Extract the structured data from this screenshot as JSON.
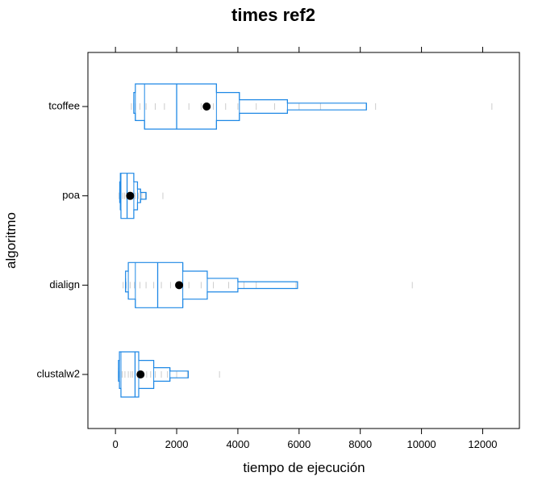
{
  "chart_data": {
    "type": "bwplot",
    "title": "times ref2",
    "xlabel": "tiempo de ejecución",
    "ylabel": "algoritmo",
    "xlim": [
      -900,
      13200
    ],
    "x_ticks": [
      0,
      2000,
      4000,
      6000,
      8000,
      10000,
      12000
    ],
    "x_tick_labels": [
      "0",
      "2000",
      "4000",
      "6000",
      "8000",
      "10000",
      "12000"
    ],
    "categories": [
      "clustalw2",
      "dialign",
      "poa",
      "tcoffee"
    ],
    "colors": {
      "box": "#1e88e5",
      "median": "#1e88e5",
      "mean": "#000000",
      "points": "#cccccc"
    },
    "series": [
      {
        "category": "clustalw2",
        "mean": 820,
        "median": 640,
        "steps": [
          {
            "x1": 180,
            "x2": 760,
            "w": 1.0
          },
          {
            "x1": 130,
            "x2": 1250,
            "w": 0.62
          },
          {
            "x1": 100,
            "x2": 1780,
            "w": 0.3
          },
          {
            "x1": 100,
            "x2": 2380,
            "w": 0.15
          }
        ],
        "points": [
          130,
          220,
          310,
          420,
          500,
          560,
          640,
          720,
          800,
          900,
          1020,
          1150,
          1300,
          1500,
          1700,
          2000,
          2350,
          3400
        ]
      },
      {
        "category": "dialign",
        "mean": 2080,
        "median": 1380,
        "steps": [
          {
            "x1": 650,
            "x2": 2200,
            "w": 1.0
          },
          {
            "x1": 420,
            "x2": 3000,
            "w": 0.62
          },
          {
            "x1": 330,
            "x2": 4000,
            "w": 0.3
          },
          {
            "x1": 330,
            "x2": 5950,
            "w": 0.15
          }
        ],
        "points": [
          250,
          350,
          480,
          620,
          800,
          1000,
          1250,
          1500,
          1800,
          2100,
          2400,
          2800,
          3200,
          3700,
          4200,
          4600,
          5900,
          9700
        ]
      },
      {
        "category": "poa",
        "mean": 480,
        "median": 380,
        "steps": [
          {
            "x1": 180,
            "x2": 600,
            "w": 1.0
          },
          {
            "x1": 160,
            "x2": 720,
            "w": 0.62
          },
          {
            "x1": 140,
            "x2": 820,
            "w": 0.3
          },
          {
            "x1": 140,
            "x2": 1000,
            "w": 0.15
          }
        ],
        "points": [
          120,
          180,
          240,
          300,
          360,
          420,
          480,
          560,
          640,
          750,
          860,
          980,
          1550
        ]
      },
      {
        "category": "tcoffee",
        "mean": 2980,
        "median": 2000,
        "steps": [
          {
            "x1": 950,
            "x2": 3300,
            "w": 1.0
          },
          {
            "x1": 650,
            "x2": 4050,
            "w": 0.62
          },
          {
            "x1": 600,
            "x2": 5620,
            "w": 0.3
          },
          {
            "x1": 600,
            "x2": 8200,
            "w": 0.15
          }
        ],
        "points": [
          520,
          650,
          800,
          1000,
          1300,
          1600,
          2000,
          2400,
          2800,
          3200,
          3600,
          4000,
          4600,
          5200,
          6000,
          6700,
          8500,
          12300
        ]
      }
    ]
  }
}
